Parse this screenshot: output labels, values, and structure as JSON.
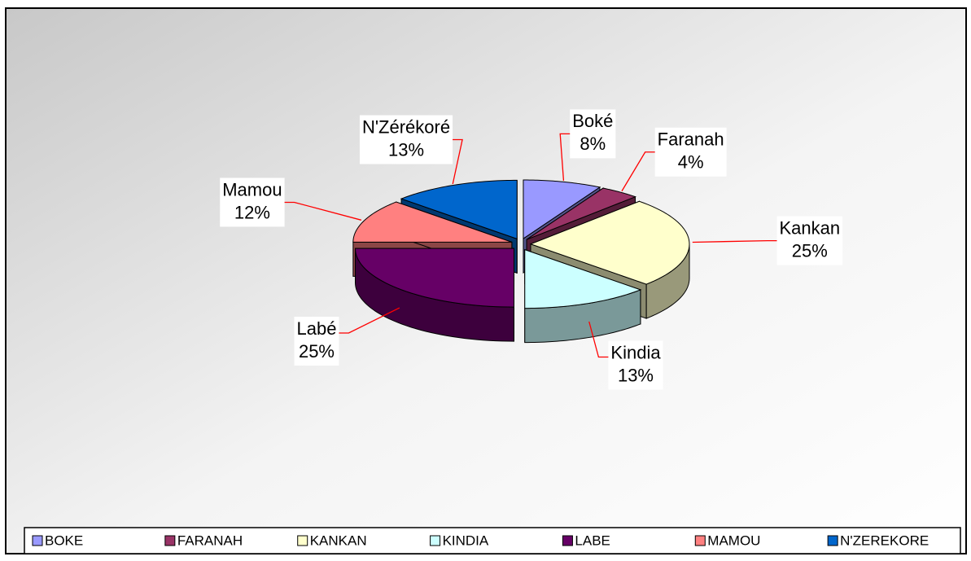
{
  "chart_data": {
    "type": "pie",
    "categories": [
      "BOKE",
      "FARANAH",
      "KANKAN",
      "KINDIA",
      "LABE",
      "MAMOU",
      "N'ZEREKORE"
    ],
    "slice_labels": [
      "Boké",
      "Faranah",
      "Kankan",
      "Kindia",
      "Labé",
      "Mamou",
      "N'Zérékoré"
    ],
    "values": [
      8,
      4,
      25,
      13,
      25,
      12,
      13
    ],
    "value_labels": [
      "8%",
      "4%",
      "25%",
      "13%",
      "25%",
      "12%",
      "13%"
    ],
    "colors": [
      "#9999ff",
      "#993366",
      "#ffffcc",
      "#ccffff",
      "#660066",
      "#ff8080",
      "#0066cc"
    ],
    "legend": "bottom"
  }
}
